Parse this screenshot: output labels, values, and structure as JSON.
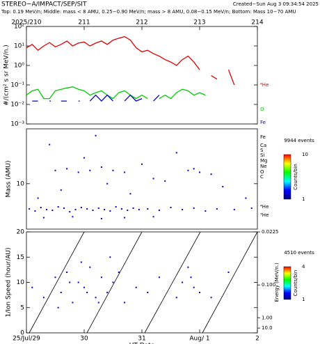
{
  "header": {
    "title": "STEREO−A/IMPACT/SEP/SIT",
    "created": "Created−Sun Aug  3 09:34:54 2025",
    "subtitle": "Top: 0.19 MeV/n; Middle: mass < 8 AMU, 0.25−0.90 MeV/n; mass > 8 AMU, 0.08−0.15 MeV/n; Bottom: Mass 10−70 AMU"
  },
  "chart_data": [
    {
      "type": "line",
      "ylabel": "#/(cm² s sr MeV/n.)",
      "log_y": true,
      "ylim": [
        0.001,
        100
      ],
      "yticks": [
        {
          "value": 100,
          "label": "10²"
        },
        {
          "value": 10,
          "label": "10¹"
        },
        {
          "value": 1,
          "label": "10⁰"
        },
        {
          "value": 0.1,
          "label": "10⁻¹"
        },
        {
          "value": 0.01,
          "label": "10⁻²"
        },
        {
          "value": 0.001,
          "label": "10⁻³"
        }
      ],
      "xlim": [
        210,
        214
      ],
      "xticks": [
        {
          "value": 210,
          "label": "2025/210"
        },
        211,
        212,
        213,
        214
      ],
      "x": [
        210.0,
        210.1,
        210.2,
        210.3,
        210.4,
        210.5,
        210.6,
        210.7,
        210.8,
        210.9,
        211.0,
        211.1,
        211.2,
        211.3,
        211.4,
        211.5,
        211.6,
        211.7,
        211.8,
        211.9,
        212.0,
        212.1,
        212.2,
        212.3,
        212.4,
        212.5,
        212.6,
        212.7,
        212.8,
        212.9,
        213.0,
        213.1,
        213.2,
        213.3,
        213.4,
        213.5,
        213.6
      ],
      "series": [
        {
          "name": "⁴He",
          "color": "#e00000",
          "values": [
            8,
            12,
            6,
            10,
            15,
            9,
            12,
            18,
            10,
            14,
            16,
            10,
            14,
            18,
            12,
            20,
            25,
            30,
            20,
            8,
            5,
            6,
            4,
            3,
            2,
            1.5,
            1,
            2,
            3,
            1.5,
            0.6,
            null,
            0.3,
            0.2,
            null,
            0.6,
            0.1
          ]
        },
        {
          "name": "O",
          "color": "#00cc00",
          "values": [
            0.03,
            0.05,
            0.06,
            0.02,
            0.02,
            0.05,
            0.06,
            0.07,
            0.08,
            0.06,
            0.05,
            0.03,
            0.04,
            0.05,
            0.03,
            0.02,
            0.04,
            0.05,
            0.03,
            0.02,
            0.03,
            0.02,
            null,
            0.02,
            0.03,
            0.02,
            0.04,
            0.06,
            0.05,
            0.03,
            0.04,
            0.03,
            null,
            null,
            null,
            null,
            null
          ]
        },
        {
          "name": "Fe",
          "color": "#0000cc",
          "values": [
            null,
            0.015,
            0.015,
            null,
            0.015,
            null,
            0.015,
            0.015,
            null,
            0.015,
            null,
            0.015,
            0.03,
            0.015,
            0.03,
            0.015,
            null,
            0.015,
            0.03,
            0.015,
            0.02,
            null,
            0.015,
            0.03,
            null,
            null,
            null,
            null,
            null,
            null,
            null,
            null,
            null,
            null,
            null,
            null,
            null
          ]
        }
      ]
    },
    {
      "type": "scatter",
      "ylabel": "Mass (AMU)",
      "log_y": true,
      "ylim": [
        2,
        70
      ],
      "yticks": [
        10
      ],
      "xlim": [
        210,
        214
      ],
      "color": "#0000cd",
      "species": [
        "Fe",
        "Ca",
        "S",
        "Si",
        "Mg",
        "Ne",
        "O",
        "C",
        "⁴He",
        "³He"
      ],
      "colorbar": {
        "title": "9944 events",
        "ticks": [
          1,
          10
        ],
        "label": "Counts/bin"
      },
      "x": [
        210.05,
        210.15,
        210.25,
        210.35,
        210.45,
        210.55,
        210.65,
        210.75,
        210.85,
        210.95,
        211.05,
        211.15,
        211.25,
        211.35,
        211.45,
        211.55,
        211.65,
        211.75,
        211.85,
        211.95,
        212.1,
        212.3,
        212.5,
        212.7,
        212.9,
        213.1,
        213.3,
        213.6,
        213.9,
        210.5,
        210.7,
        210.9,
        211.1,
        211.3,
        211.5,
        211.7,
        212.8,
        212.9,
        213.0,
        210.2,
        210.6,
        211.0,
        211.4,
        211.8,
        212.2,
        212.6,
        213.4,
        213.8,
        210.4,
        211.2,
        212.0,
        212.4,
        213.2,
        210.3,
        210.8,
        211.3,
        211.7,
        212.2
      ],
      "values": [
        4.1,
        3.8,
        4.3,
        4.0,
        3.9,
        4.4,
        4.2,
        3.7,
        4.0,
        4.3,
        4.1,
        3.9,
        4.2,
        4.0,
        3.8,
        4.4,
        4.1,
        3.9,
        4.2,
        4.0,
        4.1,
        3.9,
        4.3,
        4.0,
        4.2,
        3.8,
        4.1,
        4.0,
        4.2,
        16,
        17,
        15,
        16,
        18,
        16,
        15,
        16,
        17,
        15,
        6,
        8,
        25,
        10,
        7,
        12,
        30,
        9,
        6,
        40,
        55,
        20,
        11,
        14,
        3.0,
        3.1,
        2.9,
        3.0,
        3.1
      ]
    },
    {
      "type": "scatter",
      "ylabel": "1/Ion Speed (hour/AU)",
      "xlabel": "UT Date",
      "ylim": [
        0,
        20
      ],
      "yticks": [
        0,
        5,
        10,
        15,
        20
      ],
      "xlim": [
        210,
        214
      ],
      "xticks": [
        {
          "value": 210,
          "label": "25/Jul/29"
        },
        211,
        {
          "value": 211,
          "label": "30"
        },
        {
          "value": 212,
          "label": "31"
        },
        {
          "value": 213,
          "label": "Aug/ 1"
        },
        {
          "value": 214,
          "label": "2"
        }
      ],
      "y2label": "Energy (MeV/n.)",
      "y2ticks": [
        {
          "value": 0.0225,
          "label": "0.0225"
        },
        {
          "value": 0.1,
          "label": "0.100"
        },
        {
          "value": 1,
          "label": "1.00"
        },
        {
          "value": 10,
          "label": "10.0"
        }
      ],
      "color": "#0000cd",
      "colorbar": {
        "title": "4510 events",
        "ticks": [
          1,
          4
        ],
        "label": "Counts/bin"
      },
      "x": [
        210.1,
        210.3,
        210.5,
        210.6,
        210.7,
        210.8,
        210.9,
        211.0,
        211.1,
        211.2,
        211.3,
        211.4,
        211.5,
        211.6,
        211.7,
        211.9,
        212.1,
        212.3,
        212.6,
        212.7,
        212.8,
        212.9,
        213.0,
        213.2,
        213.5,
        210.55,
        210.95,
        211.25,
        211.45,
        210.75,
        211.05,
        212.85
      ],
      "values": [
        9,
        7,
        11,
        8,
        12,
        6,
        10,
        9,
        13,
        7,
        11,
        8,
        10,
        12,
        6,
        9,
        8,
        11,
        7,
        10,
        13,
        9,
        8,
        7,
        12,
        5,
        14,
        6,
        15,
        10,
        8,
        11
      ]
    }
  ]
}
